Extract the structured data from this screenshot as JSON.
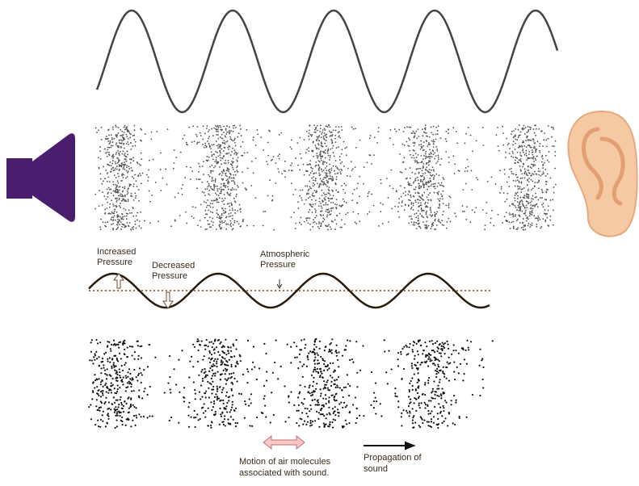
{
  "labels": [
    {
      "lines": [
        "Increased",
        "Pressure"
      ]
    },
    {
      "lines": [
        "Decreased",
        "Pressure"
      ]
    },
    {
      "lines": [
        "Atmospheric",
        "Pressure"
      ]
    }
  ],
  "legend": {
    "motion": [
      "Motion of air molecules",
      "associated with sound."
    ],
    "propagation": [
      "Propagation of",
      "sound"
    ]
  }
}
